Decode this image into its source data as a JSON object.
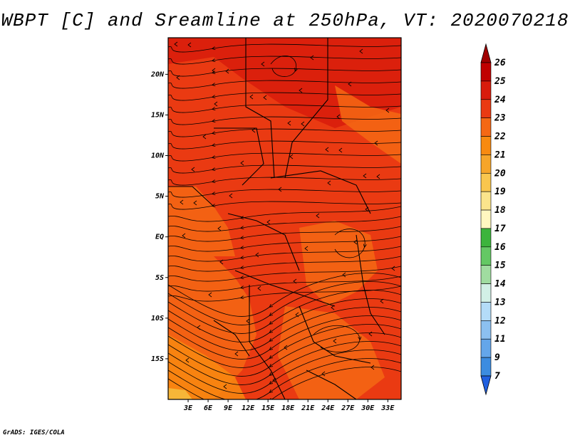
{
  "title": "WBPT [C] and Sreamline at 250hPa, VT: 2020070218",
  "credit": "GrADS: IGES/COLA",
  "map": {
    "lat_ticks": [
      "20N",
      "15N",
      "10N",
      "5N",
      "EQ",
      "5S",
      "10S",
      "15S"
    ],
    "lat_values": [
      20,
      15,
      10,
      5,
      0,
      -5,
      -10,
      -15
    ],
    "lon_ticks": [
      "3E",
      "6E",
      "9E",
      "12E",
      "15E",
      "18E",
      "21E",
      "24E",
      "27E",
      "30E",
      "33E"
    ],
    "lon_values": [
      3,
      6,
      9,
      12,
      15,
      18,
      21,
      24,
      27,
      30,
      33
    ],
    "lon_range": [
      0,
      35
    ],
    "lat_range": [
      -20,
      24.5
    ]
  },
  "colorbar": {
    "labels": [
      "26",
      "25",
      "24",
      "23",
      "22",
      "21",
      "20",
      "19",
      "18",
      "17",
      "16",
      "15",
      "14",
      "13",
      "12",
      "11",
      "9",
      "7"
    ],
    "colors": [
      "#c00000",
      "#d81c0c",
      "#ea3a12",
      "#f56814",
      "#f88a10",
      "#f6a52a",
      "#f9c64e",
      "#fbe48c",
      "#fff7c0",
      "#3cb43c",
      "#64c864",
      "#a0dca0",
      "#d2f0e6",
      "#b4dcf8",
      "#8cc0f0",
      "#64a6ea",
      "#3c8ce0",
      "#1e6edc"
    ],
    "tip_top_color": "#a00000",
    "tip_bottom_color": "#2060e0"
  },
  "field": {
    "dominant_color": "#ea3a12",
    "warm_color": "#d81c0c",
    "cool_color": "#f56814",
    "coolest_color": "#f88a10",
    "yellow_color": "#f6c040"
  }
}
